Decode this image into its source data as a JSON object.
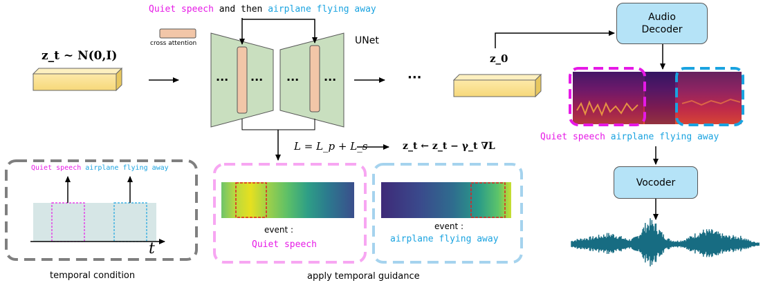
{
  "prompt": {
    "event1": "Quiet speech",
    "joiner": " and then ",
    "event2": "airplane flying away"
  },
  "cross_attention_label": "cross attention",
  "unet_label": "UNet",
  "ellipsis": "···",
  "latent_noise_label": "z_t ~ N(0,I)",
  "latent_z0_label": "z_0",
  "loss_formula": "L = L_p + L_s",
  "update_formula": "z_t ← z_t − γ_t ∇L",
  "audio_decoder_label": "Audio Decoder",
  "vocoder_label": "Vocoder",
  "spec_caption": {
    "event1": "Quiet speech",
    "event2": "airplane flying away"
  },
  "temporal_condition": {
    "caption": "temporal condition",
    "event1": "Quiet speech",
    "event2": "airplane flying away",
    "axis_label": "t"
  },
  "guidance": {
    "caption": "apply temporal guidance",
    "panel1": {
      "prefix": "event :",
      "event": "Quiet speech"
    },
    "panel2": {
      "prefix": "event :",
      "event": "airplane flying away"
    }
  },
  "colors": {
    "magenta": "#e619e6",
    "blue": "#1aa3e0",
    "green_block": "#c9dfbf",
    "latent": "#fbe6a0",
    "decoder": "#b5e3f7",
    "waveform": "#176c82",
    "dashed_gray": "#7f7f7f",
    "dashed_pink": "#f7a6f2",
    "dashed_lightblue": "#a5d3ee"
  }
}
